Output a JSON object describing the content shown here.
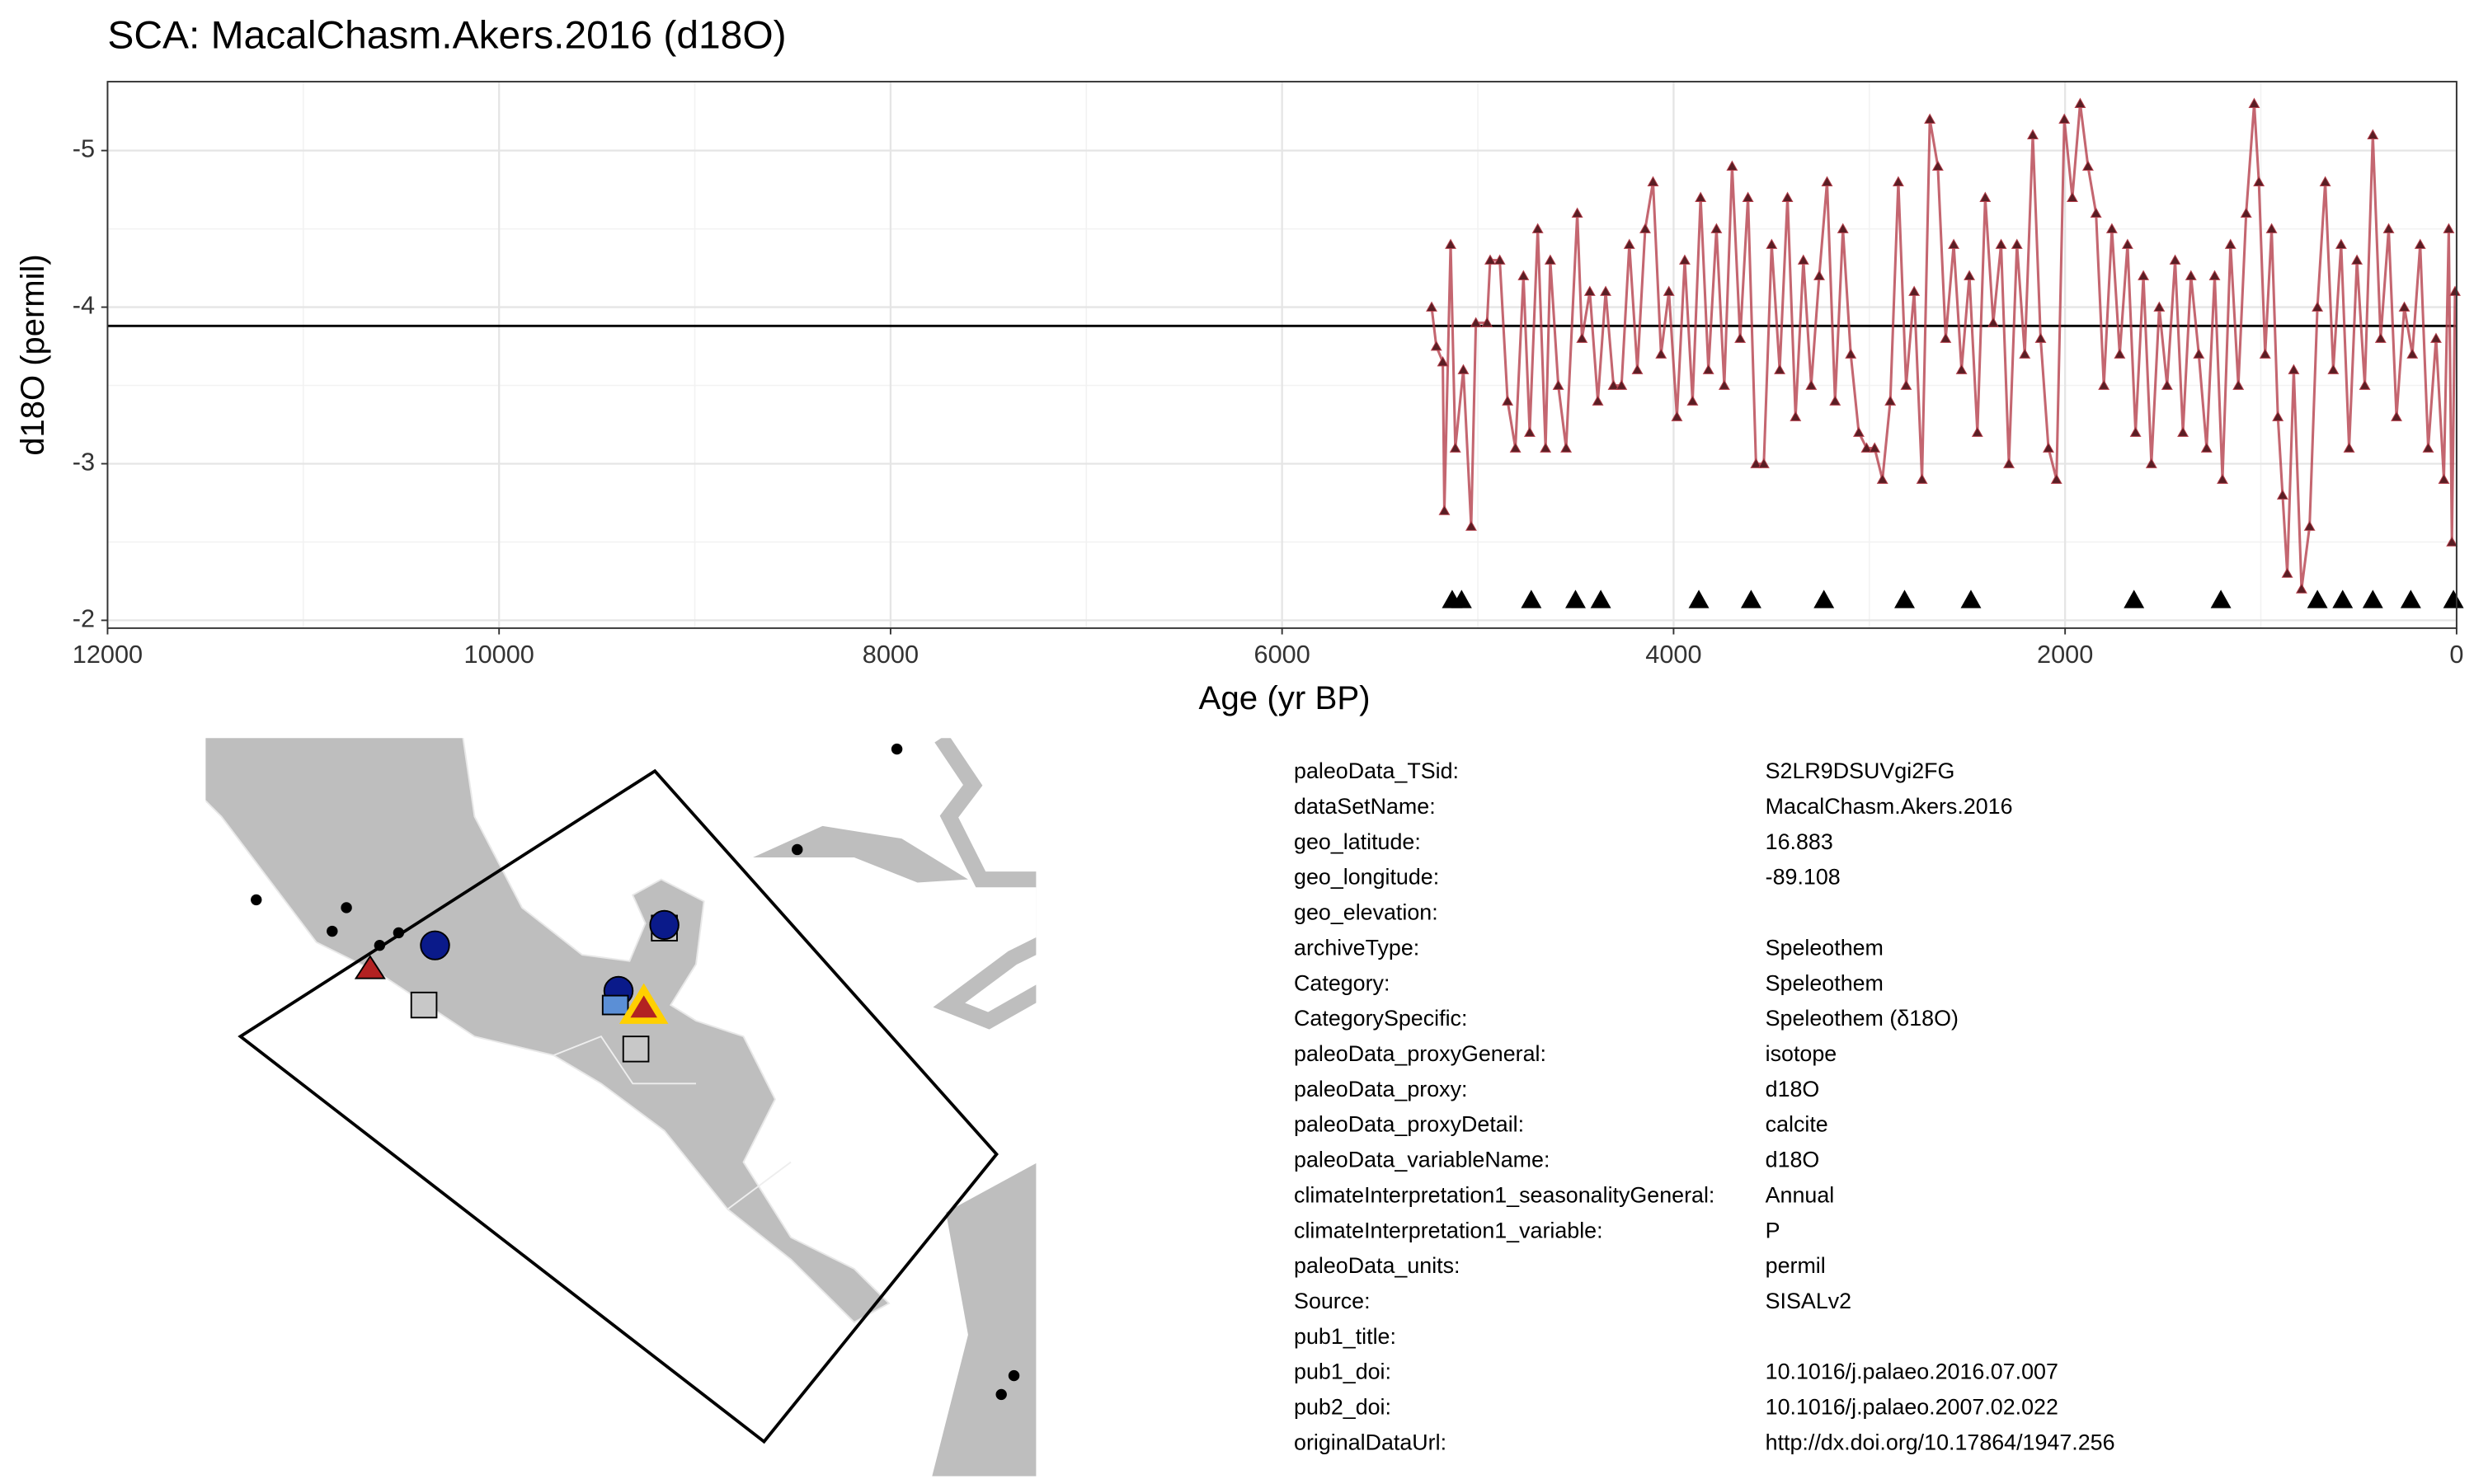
{
  "chart_data": {
    "type": "line",
    "title": "SCA: MacalChasm.Akers.2016 (d18O)",
    "xlabel": "Age (yr BP)",
    "ylabel": "d18O (permil)",
    "xlim": [
      12000,
      0
    ],
    "xticks": [
      12000,
      10000,
      8000,
      6000,
      4000,
      2000,
      0
    ],
    "minor_xticks": [
      11000,
      9000,
      7000,
      5000,
      3000,
      1000
    ],
    "ylim": [
      -1.95,
      -5.44
    ],
    "yticks": [
      -5,
      -4,
      -3,
      -2
    ],
    "minor_yticks": [
      -4.5,
      -3.5,
      -2.5
    ],
    "grid": true,
    "hline": -3.88,
    "series": [
      {
        "color": "#b5404c",
        "marker_color": "#5a1e24",
        "x": [
          5236,
          5212,
          5179,
          5171,
          5139,
          5115,
          5074,
          5034,
          5010,
          4953,
          4937,
          4888,
          4848,
          4808,
          4767,
          4735,
          4694,
          4654,
          4630,
          4589,
          4549,
          4492,
          4468,
          4428,
          4387,
          4347,
          4307,
          4266,
          4226,
          4185,
          4145,
          4105,
          4064,
          4024,
          3983,
          3943,
          3903,
          3862,
          3822,
          3781,
          3741,
          3701,
          3660,
          3620,
          3579,
          3539,
          3499,
          3458,
          3418,
          3377,
          3337,
          3297,
          3256,
          3216,
          3175,
          3135,
          3095,
          3054,
          3014,
          2973,
          2933,
          2893,
          2852,
          2812,
          2771,
          2731,
          2691,
          2650,
          2610,
          2569,
          2529,
          2489,
          2448,
          2408,
          2367,
          2327,
          2287,
          2246,
          2206,
          2165,
          2125,
          2085,
          2044,
          2004,
          1963,
          1923,
          1883,
          1842,
          1802,
          1761,
          1721,
          1681,
          1640,
          1600,
          1559,
          1519,
          1479,
          1438,
          1398,
          1357,
          1317,
          1277,
          1236,
          1196,
          1155,
          1115,
          1075,
          1034,
          1010,
          978,
          945,
          913,
          889,
          865,
          832,
          792,
          751,
          711,
          671,
          630,
          590,
          549,
          509,
          469,
          428,
          388,
          347,
          307,
          267,
          226,
          186,
          145,
          105,
          65,
          40,
          24,
          8
        ],
        "values": [
          -4.0,
          -3.75,
          -3.65,
          -2.7,
          -4.4,
          -3.1,
          -3.6,
          -2.6,
          -3.9,
          -3.9,
          -4.3,
          -4.3,
          -3.4,
          -3.1,
          -4.2,
          -3.2,
          -4.5,
          -3.1,
          -4.3,
          -3.5,
          -3.1,
          -4.6,
          -3.8,
          -4.1,
          -3.4,
          -4.1,
          -3.5,
          -3.5,
          -4.4,
          -3.6,
          -4.5,
          -4.8,
          -3.7,
          -4.1,
          -3.3,
          -4.3,
          -3.4,
          -4.7,
          -3.6,
          -4.5,
          -3.5,
          -4.9,
          -3.8,
          -4.7,
          -3.0,
          -3.0,
          -4.4,
          -3.6,
          -4.7,
          -3.3,
          -4.3,
          -3.5,
          -4.2,
          -4.8,
          -3.4,
          -4.5,
          -3.7,
          -3.2,
          -3.1,
          -3.1,
          -2.9,
          -3.4,
          -4.8,
          -3.5,
          -4.1,
          -2.9,
          -5.2,
          -4.9,
          -3.8,
          -4.4,
          -3.6,
          -4.2,
          -3.2,
          -4.7,
          -3.9,
          -4.4,
          -3.0,
          -4.4,
          -3.7,
          -5.1,
          -3.8,
          -3.1,
          -2.9,
          -5.2,
          -4.7,
          -5.3,
          -4.9,
          -4.6,
          -3.5,
          -4.5,
          -3.7,
          -4.4,
          -3.2,
          -4.2,
          -3.0,
          -4.0,
          -3.5,
          -4.3,
          -3.2,
          -4.2,
          -3.7,
          -3.1,
          -4.2,
          -2.9,
          -4.4,
          -3.5,
          -4.6,
          -5.3,
          -4.8,
          -3.7,
          -4.5,
          -3.3,
          -2.8,
          -2.3,
          -3.6,
          -2.2,
          -2.6,
          -4.0,
          -4.8,
          -3.6,
          -4.4,
          -3.1,
          -4.3,
          -3.5,
          -5.1,
          -3.8,
          -4.5,
          -3.3,
          -4.0,
          -3.7,
          -4.4,
          -3.1,
          -3.8,
          -2.9,
          -4.5,
          -2.5,
          -4.1
        ]
      },
      {
        "color": "#000000",
        "lines": false,
        "x": [
          5131,
          5083,
          4727,
          4501,
          4372,
          3871,
          3604,
          3232,
          2820,
          2481,
          1648,
          1204,
          711,
          582,
          428,
          234,
          16
        ],
        "values": [
          -2.13,
          -2.13,
          -2.13,
          -2.13,
          -2.13,
          -2.13,
          -2.13,
          -2.13,
          -2.13,
          -2.13,
          -2.13,
          -2.13,
          -2.13,
          -2.13,
          -2.13,
          -2.13,
          -2.13
        ]
      }
    ]
  },
  "metadata": {
    "rows": [
      [
        "paleoData_TSid:",
        "S2LR9DSUVgi2FG"
      ],
      [
        "dataSetName:",
        "MacalChasm.Akers.2016"
      ],
      [
        "geo_latitude:",
        "16.883"
      ],
      [
        "geo_longitude:",
        "-89.108"
      ],
      [
        "geo_elevation:"
      ],
      [
        "archiveType:",
        "Speleothem"
      ],
      [
        "Category:",
        "Speleothem"
      ],
      [
        "CategorySpecific:",
        "Speleothem (δ18O)"
      ],
      [
        "paleoData_proxyGeneral:",
        "isotope"
      ],
      [
        "paleoData_proxy:",
        "d18O"
      ],
      [
        "paleoData_proxyDetail:",
        "calcite"
      ],
      [
        "paleoData_variableName:",
        "d18O"
      ],
      [
        "climateInterpretation1_seasonalityGeneral:",
        "Annual"
      ],
      [
        "climateInterpretation1_variable:",
        "P"
      ],
      [
        "paleoData_units:",
        "permil"
      ],
      [
        "Source:",
        "SISALv2"
      ],
      [
        "pub1_title:"
      ],
      [
        "pub1_doi:",
        "10.1016/j.palaeo.2016.07.007"
      ],
      [
        "pub2_doi:",
        "10.1016/j.palaeo.2007.02.022"
      ],
      [
        "originalDataUrl:",
        "http://dx.doi.org/10.17864/1947.256"
      ]
    ]
  }
}
